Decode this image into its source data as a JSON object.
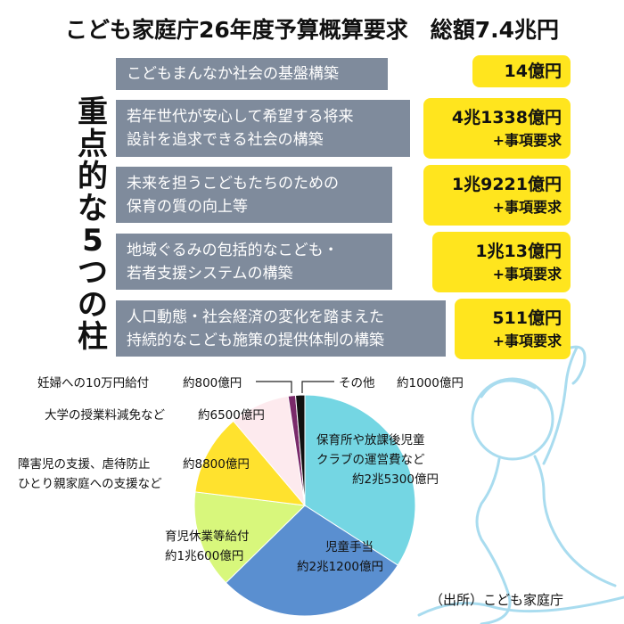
{
  "header": {
    "title": "こども家庭庁26年度予算概算要求　総額7.4兆円",
    "side_heading": "重点的な5つの柱"
  },
  "pillars": [
    {
      "text": "こどもまんなか社会の基盤構築",
      "amount": "14億円"
    },
    {
      "text": "若年世代が安心して希望する将来\n設計を追求できる社会の構築",
      "amount": "4兆1338億円",
      "note": "+事項要求"
    },
    {
      "text": "未来を担うこどもたちのための\n保育の質の向上等",
      "amount": "1兆9221億円",
      "note": "+事項要求"
    },
    {
      "text": "地域ぐるみの包括的なこども・\n若者支援システムの構築",
      "amount": "1兆13億円",
      "note": "+事項要求"
    },
    {
      "text": "人口動態・社会経済の変化を踏まえた\n持続的なこども施策の提供体制の構築",
      "amount": "511億円",
      "note": "+事項要求"
    }
  ],
  "chart_data": {
    "type": "pie",
    "categories": [
      "保育所や放課後児童\nクラブの運営費など",
      "児童手当",
      "育児休業等給付",
      "障害児の支援、虐待防止\nひとり親家庭への支援など",
      "大学の授業料減免など",
      "妊婦への10万円給付",
      "その他"
    ],
    "values": [
      25300,
      21200,
      10600,
      8800,
      6500,
      800,
      1000
    ],
    "value_labels": [
      "約2兆5300億円",
      "約2兆1200億円",
      "約1兆600億円",
      "約8800億円",
      "約6500億円",
      "約800億円",
      "約1000億円"
    ],
    "colors": [
      "#74d6e3",
      "#5a8fd0",
      "#d8f77c",
      "#ffe22e",
      "#fdeaee",
      "#7a2a6a",
      "#111111"
    ]
  },
  "source": "（出所）こども家庭庁"
}
